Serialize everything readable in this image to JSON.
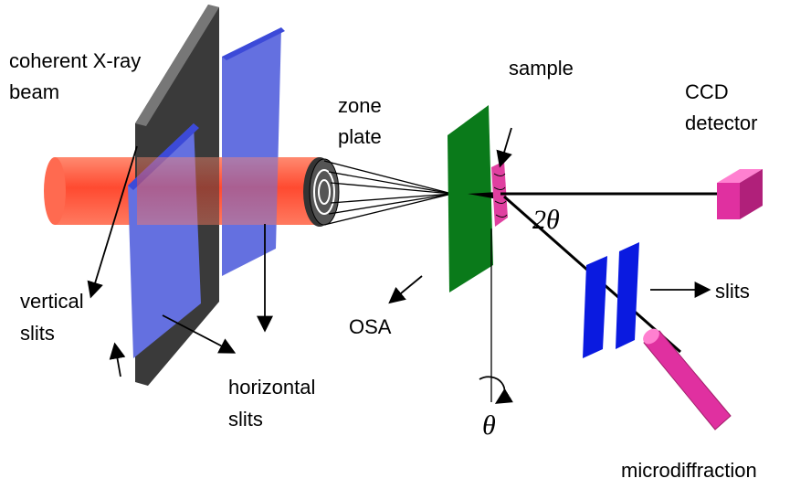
{
  "labels": [
    {
      "lines": [
        "coherent X-ray",
        "beam"
      ]
    },
    {
      "lines": [
        "zone",
        "plate"
      ]
    },
    {
      "lines": [
        "sample"
      ]
    },
    {
      "lines": [
        "CCD",
        "detector"
      ]
    },
    {
      "lines": [
        "2θ"
      ]
    },
    {
      "lines": [
        "vertical",
        "slits"
      ]
    },
    {
      "lines": [
        "horizontal",
        "slits"
      ]
    },
    {
      "lines": [
        "OSA"
      ]
    },
    {
      "lines": [
        "slits"
      ]
    },
    {
      "lines": [
        "θ"
      ]
    },
    {
      "lines": [
        "microdiffraction"
      ]
    }
  ]
}
